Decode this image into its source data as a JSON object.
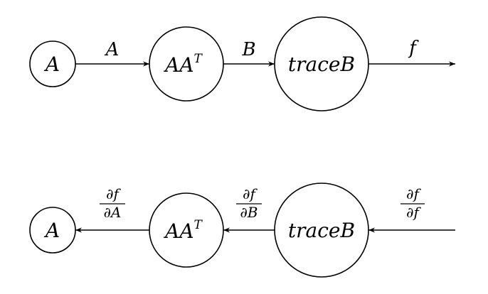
{
  "forward": {
    "nodes": [
      {
        "id": "A",
        "label": "A"
      },
      {
        "id": "AAT",
        "label_base": "AA",
        "label_sup": "T"
      },
      {
        "id": "traceB",
        "label": "traceB"
      }
    ],
    "edges": [
      {
        "from": "A",
        "to": "AAT",
        "label": "A"
      },
      {
        "from": "AAT",
        "to": "traceB",
        "label": "B"
      },
      {
        "from": "traceB",
        "to": "output",
        "label": "f"
      }
    ]
  },
  "backward": {
    "nodes": [
      {
        "id": "A",
        "label": "A"
      },
      {
        "id": "AAT",
        "label_base": "AA",
        "label_sup": "T"
      },
      {
        "id": "traceB",
        "label": "traceB"
      }
    ],
    "edges": [
      {
        "from": "input",
        "to": "traceB",
        "num": "∂f",
        "den": "∂f"
      },
      {
        "from": "traceB",
        "to": "AAT",
        "num": "∂f",
        "den": "∂B"
      },
      {
        "from": "AAT",
        "to": "A",
        "num": "∂f",
        "den": "∂A"
      }
    ]
  }
}
